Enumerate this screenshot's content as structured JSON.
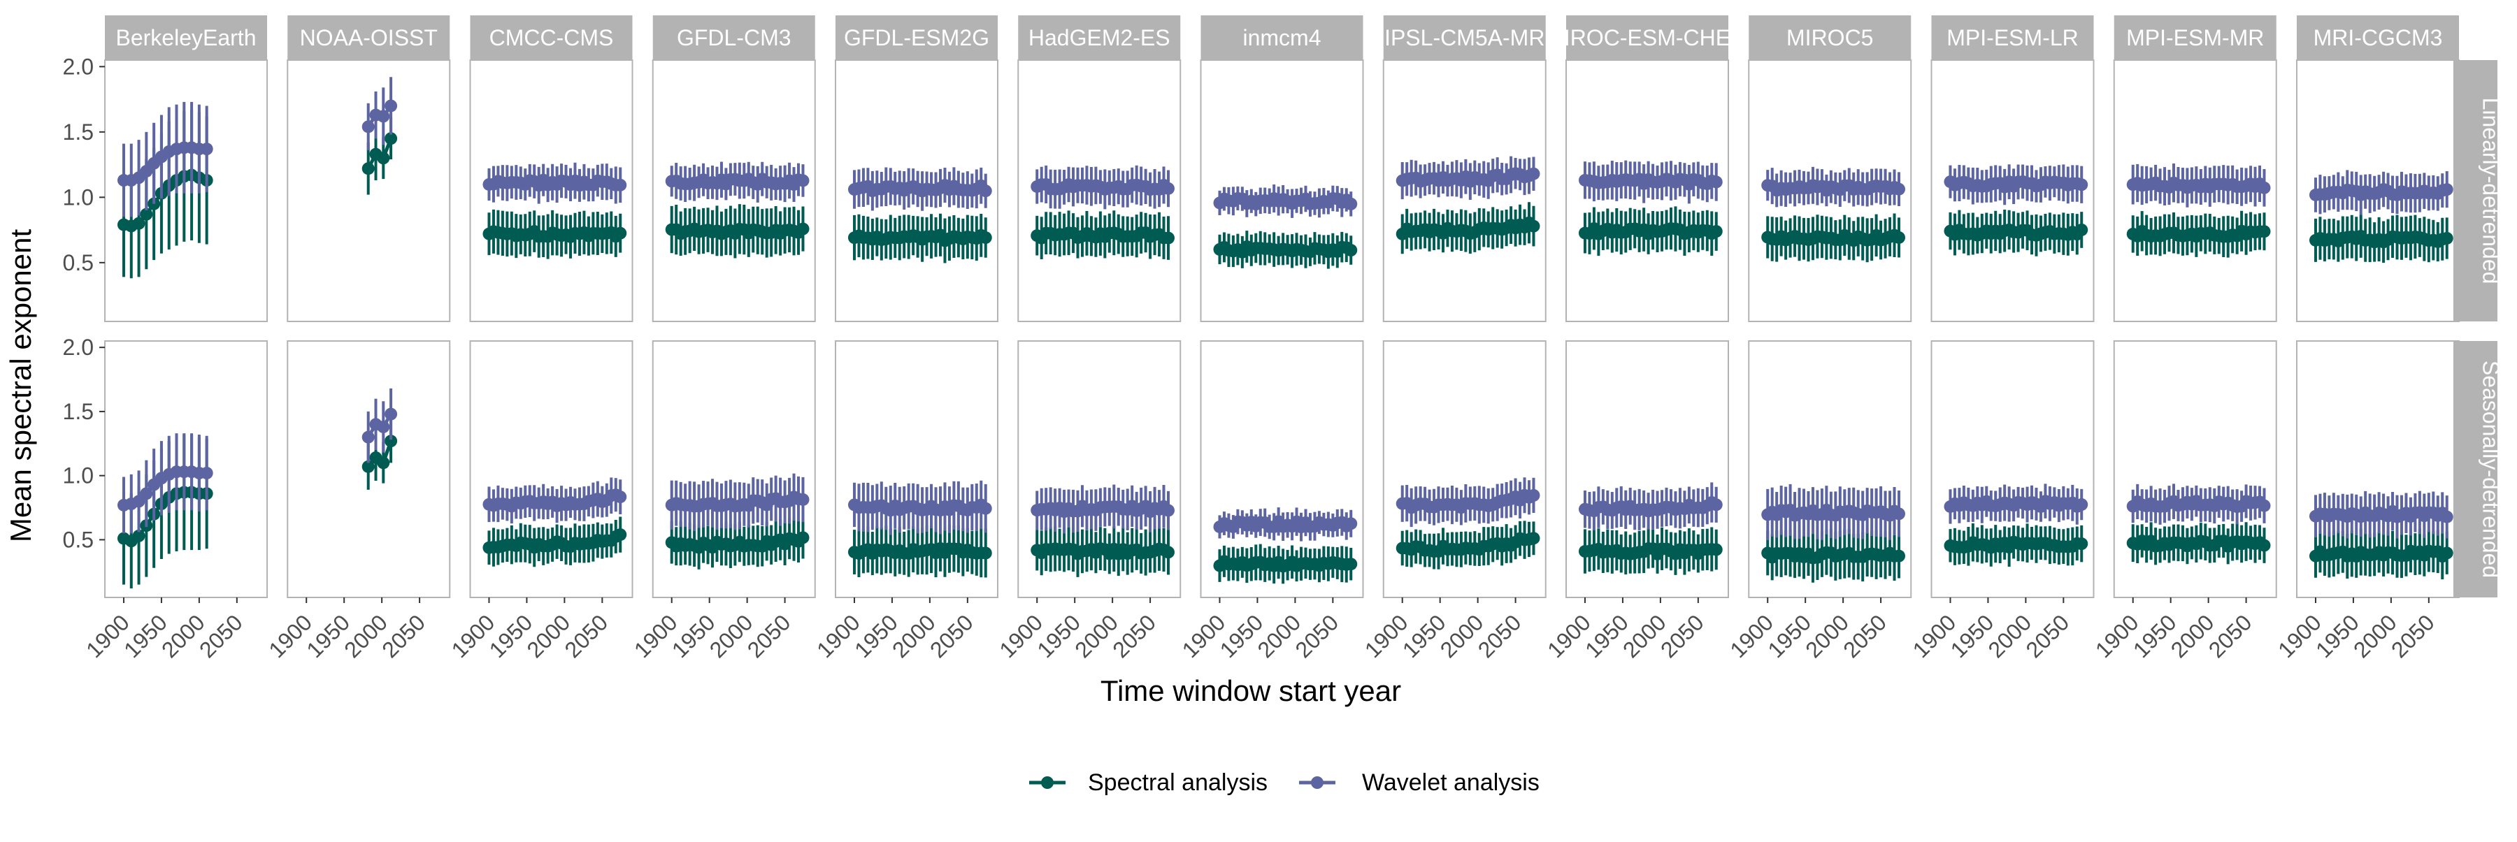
{
  "chart_data": {
    "type": "scatter",
    "style": "faceted point-range (mean with vertical error bars), grid off, panel borders",
    "ylabel": "Mean spectral exponent",
    "xlabel": "Time window start year",
    "ylim": [
      0.05,
      2.05
    ],
    "yticks": [
      0.5,
      1.0,
      1.5,
      2.0
    ],
    "ytick_labels": [
      "0.5",
      "1.0",
      "1.5",
      "2.0"
    ],
    "xlim": [
      1875,
      2090
    ],
    "xticks": [
      1900,
      1950,
      2000,
      2050
    ],
    "xtick_labels": [
      "1900",
      "1950",
      "2000",
      "2050"
    ],
    "grid": false,
    "legend_position": "bottom",
    "colors": {
      "spectral": "#005c53",
      "wavelet": "#5c64a2",
      "strip_bg": "#b3b3b3",
      "panel_border": "#b3b3b3"
    },
    "legend": [
      {
        "key": "spectral",
        "label": "Spectral analysis"
      },
      {
        "key": "wavelet",
        "label": "Wavelet analysis"
      }
    ],
    "columns": [
      "BerkeleyEarth",
      "NOAA-OISST",
      "CMCC-CMS",
      "GFDL-CM3",
      "GFDL-ESM2G",
      "HadGEM2-ES",
      "inmcm4",
      "IPSL-CM5A-MR",
      "MIROC-ESM-CHEM",
      "MIROC5",
      "MPI-ESM-LR",
      "MPI-ESM-MR",
      "MRI-CGCM3"
    ],
    "rows": [
      "Linearly-detrended",
      "Seasonally-detrended"
    ],
    "years_observed": {
      "BerkeleyEarth": [
        1900,
        1910,
        1920,
        1930,
        1940,
        1950,
        1960,
        1970,
        1980,
        1990,
        2000,
        2010
      ],
      "NOAA-OISST": [
        1982,
        1992,
        2002,
        2012
      ]
    },
    "years_model": [
      1900,
      1906,
      1912,
      1918,
      1924,
      1930,
      1936,
      1942,
      1948,
      1954,
      1960,
      1966,
      1972,
      1978,
      1984,
      1990,
      1996,
      2002,
      2008,
      2014,
      2020,
      2026,
      2032,
      2038,
      2044,
      2050,
      2056,
      2062,
      2068,
      2074
    ],
    "panels": {
      "Linearly-detrended": {
        "BerkeleyEarth": {
          "spectral": {
            "mean": [
              0.79,
              0.78,
              0.8,
              0.87,
              0.95,
              1.03,
              1.09,
              1.13,
              1.16,
              1.17,
              1.15,
              1.13
            ],
            "err": [
              0.4,
              0.4,
              0.41,
              0.42,
              0.43,
              0.46,
              0.49,
              0.5,
              0.5,
              0.5,
              0.5,
              0.49
            ]
          },
          "wavelet": {
            "mean": [
              1.13,
              1.13,
              1.15,
              1.2,
              1.26,
              1.31,
              1.35,
              1.37,
              1.38,
              1.38,
              1.37,
              1.37
            ],
            "err": [
              0.28,
              0.28,
              0.29,
              0.3,
              0.31,
              0.32,
              0.34,
              0.34,
              0.35,
              0.35,
              0.34,
              0.33
            ]
          }
        },
        "NOAA-OISST": {
          "spectral": {
            "mean": [
              1.22,
              1.33,
              1.3,
              1.45
            ],
            "err": [
              0.2,
              0.2,
              0.16,
              0.16
            ]
          },
          "wavelet": {
            "mean": [
              1.54,
              1.63,
              1.62,
              1.7
            ],
            "err": [
              0.18,
              0.18,
              0.22,
              0.22
            ]
          }
        },
        "CMCC-CMS": {
          "spectral": {
            "base": 0.72,
            "err": 0.16
          },
          "wavelet": {
            "base": 1.11,
            "err": 0.13
          }
        },
        "GFDL-CM3": {
          "spectral": {
            "base": 0.74,
            "err": 0.18
          },
          "wavelet": {
            "base": 1.12,
            "err": 0.13
          }
        },
        "GFDL-ESM2G": {
          "spectral": {
            "base": 0.69,
            "err": 0.16
          },
          "wavelet": {
            "base": 1.07,
            "err": 0.14
          }
        },
        "HadGEM2-ES": {
          "spectral": {
            "base": 0.71,
            "err": 0.16
          },
          "wavelet": {
            "base": 1.08,
            "err": 0.14
          }
        },
        "inmcm4": {
          "spectral": {
            "base": 0.6,
            "err": 0.12
          },
          "wavelet": {
            "base": 0.97,
            "err": 0.1
          }
        },
        "IPSL-CM5A-MR": {
          "spectral": {
            "base": 0.74,
            "err": 0.15,
            "end_rise": 0.06
          },
          "wavelet": {
            "base": 1.14,
            "err": 0.13,
            "end_rise": 0.05
          }
        },
        "MIROC-ESM-CHEM": {
          "spectral": {
            "base": 0.74,
            "err": 0.16
          },
          "wavelet": {
            "base": 1.12,
            "err": 0.14
          }
        },
        "MIROC5": {
          "spectral": {
            "base": 0.69,
            "err": 0.16
          },
          "wavelet": {
            "base": 1.07,
            "err": 0.13
          }
        },
        "MPI-ESM-LR": {
          "spectral": {
            "base": 0.73,
            "err": 0.15
          },
          "wavelet": {
            "base": 1.1,
            "err": 0.13
          }
        },
        "MPI-ESM-MR": {
          "spectral": {
            "base": 0.72,
            "err": 0.15
          },
          "wavelet": {
            "base": 1.09,
            "err": 0.14
          }
        },
        "MRI-CGCM3": {
          "spectral": {
            "base": 0.68,
            "err": 0.16
          },
          "wavelet": {
            "base": 1.04,
            "err": 0.14
          }
        }
      },
      "Seasonally-detrended": {
        "BerkeleyEarth": {
          "spectral": {
            "mean": [
              0.51,
              0.49,
              0.53,
              0.61,
              0.7,
              0.78,
              0.83,
              0.86,
              0.87,
              0.87,
              0.86,
              0.86
            ],
            "err": [
              0.36,
              0.37,
              0.38,
              0.4,
              0.42,
              0.43,
              0.44,
              0.45,
              0.45,
              0.45,
              0.44,
              0.43
            ]
          },
          "wavelet": {
            "mean": [
              0.77,
              0.78,
              0.8,
              0.86,
              0.93,
              0.98,
              1.01,
              1.03,
              1.03,
              1.03,
              1.02,
              1.02
            ],
            "err": [
              0.22,
              0.23,
              0.24,
              0.26,
              0.28,
              0.29,
              0.3,
              0.3,
              0.3,
              0.3,
              0.3,
              0.29
            ]
          }
        },
        "NOAA-OISST": {
          "spectral": {
            "mean": [
              1.07,
              1.14,
              1.1,
              1.27
            ],
            "err": [
              0.18,
              0.18,
              0.16,
              0.17
            ]
          },
          "wavelet": {
            "mean": [
              1.3,
              1.4,
              1.38,
              1.48
            ],
            "err": [
              0.2,
              0.2,
              0.2,
              0.2
            ]
          }
        },
        "CMCC-CMS": {
          "spectral": {
            "base": 0.46,
            "err": 0.14,
            "end_rise": 0.06
          },
          "wavelet": {
            "base": 0.78,
            "err": 0.13,
            "end_rise": 0.06
          }
        },
        "GFDL-CM3": {
          "spectral": {
            "base": 0.46,
            "err": 0.16,
            "end_rise": 0.05
          },
          "wavelet": {
            "base": 0.78,
            "err": 0.18,
            "end_rise": 0.05
          }
        },
        "GFDL-ESM2G": {
          "spectral": {
            "base": 0.41,
            "err": 0.18
          },
          "wavelet": {
            "base": 0.75,
            "err": 0.18
          }
        },
        "HadGEM2-ES": {
          "spectral": {
            "base": 0.41,
            "err": 0.17
          },
          "wavelet": {
            "base": 0.74,
            "err": 0.16
          }
        },
        "inmcm4": {
          "spectral": {
            "base": 0.31,
            "err": 0.13
          },
          "wavelet": {
            "base": 0.62,
            "err": 0.1
          }
        },
        "IPSL-CM5A-MR": {
          "spectral": {
            "base": 0.43,
            "err": 0.14,
            "end_rise": 0.1
          },
          "wavelet": {
            "base": 0.77,
            "err": 0.14,
            "end_rise": 0.08
          }
        },
        "MIROC-ESM-CHEM": {
          "spectral": {
            "base": 0.41,
            "err": 0.16
          },
          "wavelet": {
            "base": 0.74,
            "err": 0.15,
            "end_rise": 0.04
          }
        },
        "MIROC5": {
          "spectral": {
            "base": 0.38,
            "err": 0.18
          },
          "wavelet": {
            "base": 0.71,
            "err": 0.19
          }
        },
        "MPI-ESM-LR": {
          "spectral": {
            "base": 0.46,
            "err": 0.14
          },
          "wavelet": {
            "base": 0.78,
            "err": 0.13
          }
        },
        "MPI-ESM-MR": {
          "spectral": {
            "base": 0.47,
            "err": 0.14
          },
          "wavelet": {
            "base": 0.78,
            "err": 0.13
          }
        },
        "MRI-CGCM3": {
          "spectral": {
            "base": 0.39,
            "err": 0.17
          },
          "wavelet": {
            "base": 0.7,
            "err": 0.16
          }
        }
      }
    }
  }
}
